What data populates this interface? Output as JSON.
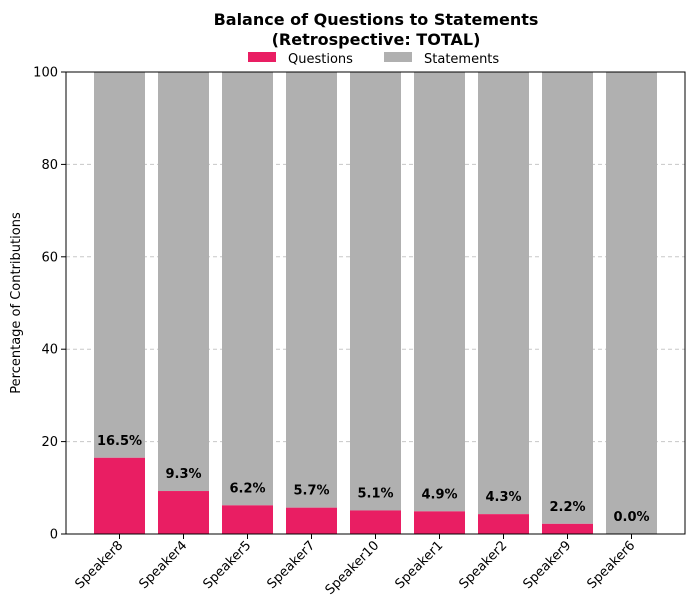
{
  "chart_data": {
    "type": "bar",
    "stacked": true,
    "title_line1": "Balance of Questions to Statements",
    "title_line2": "(Retrospective: TOTAL)",
    "xlabel": "",
    "ylabel": "Percentage of Contributions",
    "ylim": [
      0,
      100
    ],
    "yticks": [
      0,
      20,
      40,
      60,
      80,
      100
    ],
    "grid": true,
    "legend_position": "top-center",
    "categories": [
      "Speaker8",
      "Speaker4",
      "Speaker5",
      "Speaker7",
      "Speaker10",
      "Speaker1",
      "Speaker2",
      "Speaker9",
      "Speaker6"
    ],
    "series": [
      {
        "name": "Questions",
        "color": "#e91e63",
        "values": [
          16.5,
          9.3,
          6.2,
          5.7,
          5.1,
          4.9,
          4.3,
          2.2,
          0.0
        ]
      },
      {
        "name": "Statements",
        "color": "#b0b0b0",
        "values": [
          83.5,
          90.7,
          93.8,
          94.3,
          94.9,
          95.1,
          95.7,
          97.8,
          100.0
        ]
      }
    ],
    "data_labels": [
      "16.5%",
      "9.3%",
      "6.2%",
      "5.7%",
      "5.1%",
      "4.9%",
      "4.3%",
      "2.2%",
      "0.0%"
    ]
  }
}
